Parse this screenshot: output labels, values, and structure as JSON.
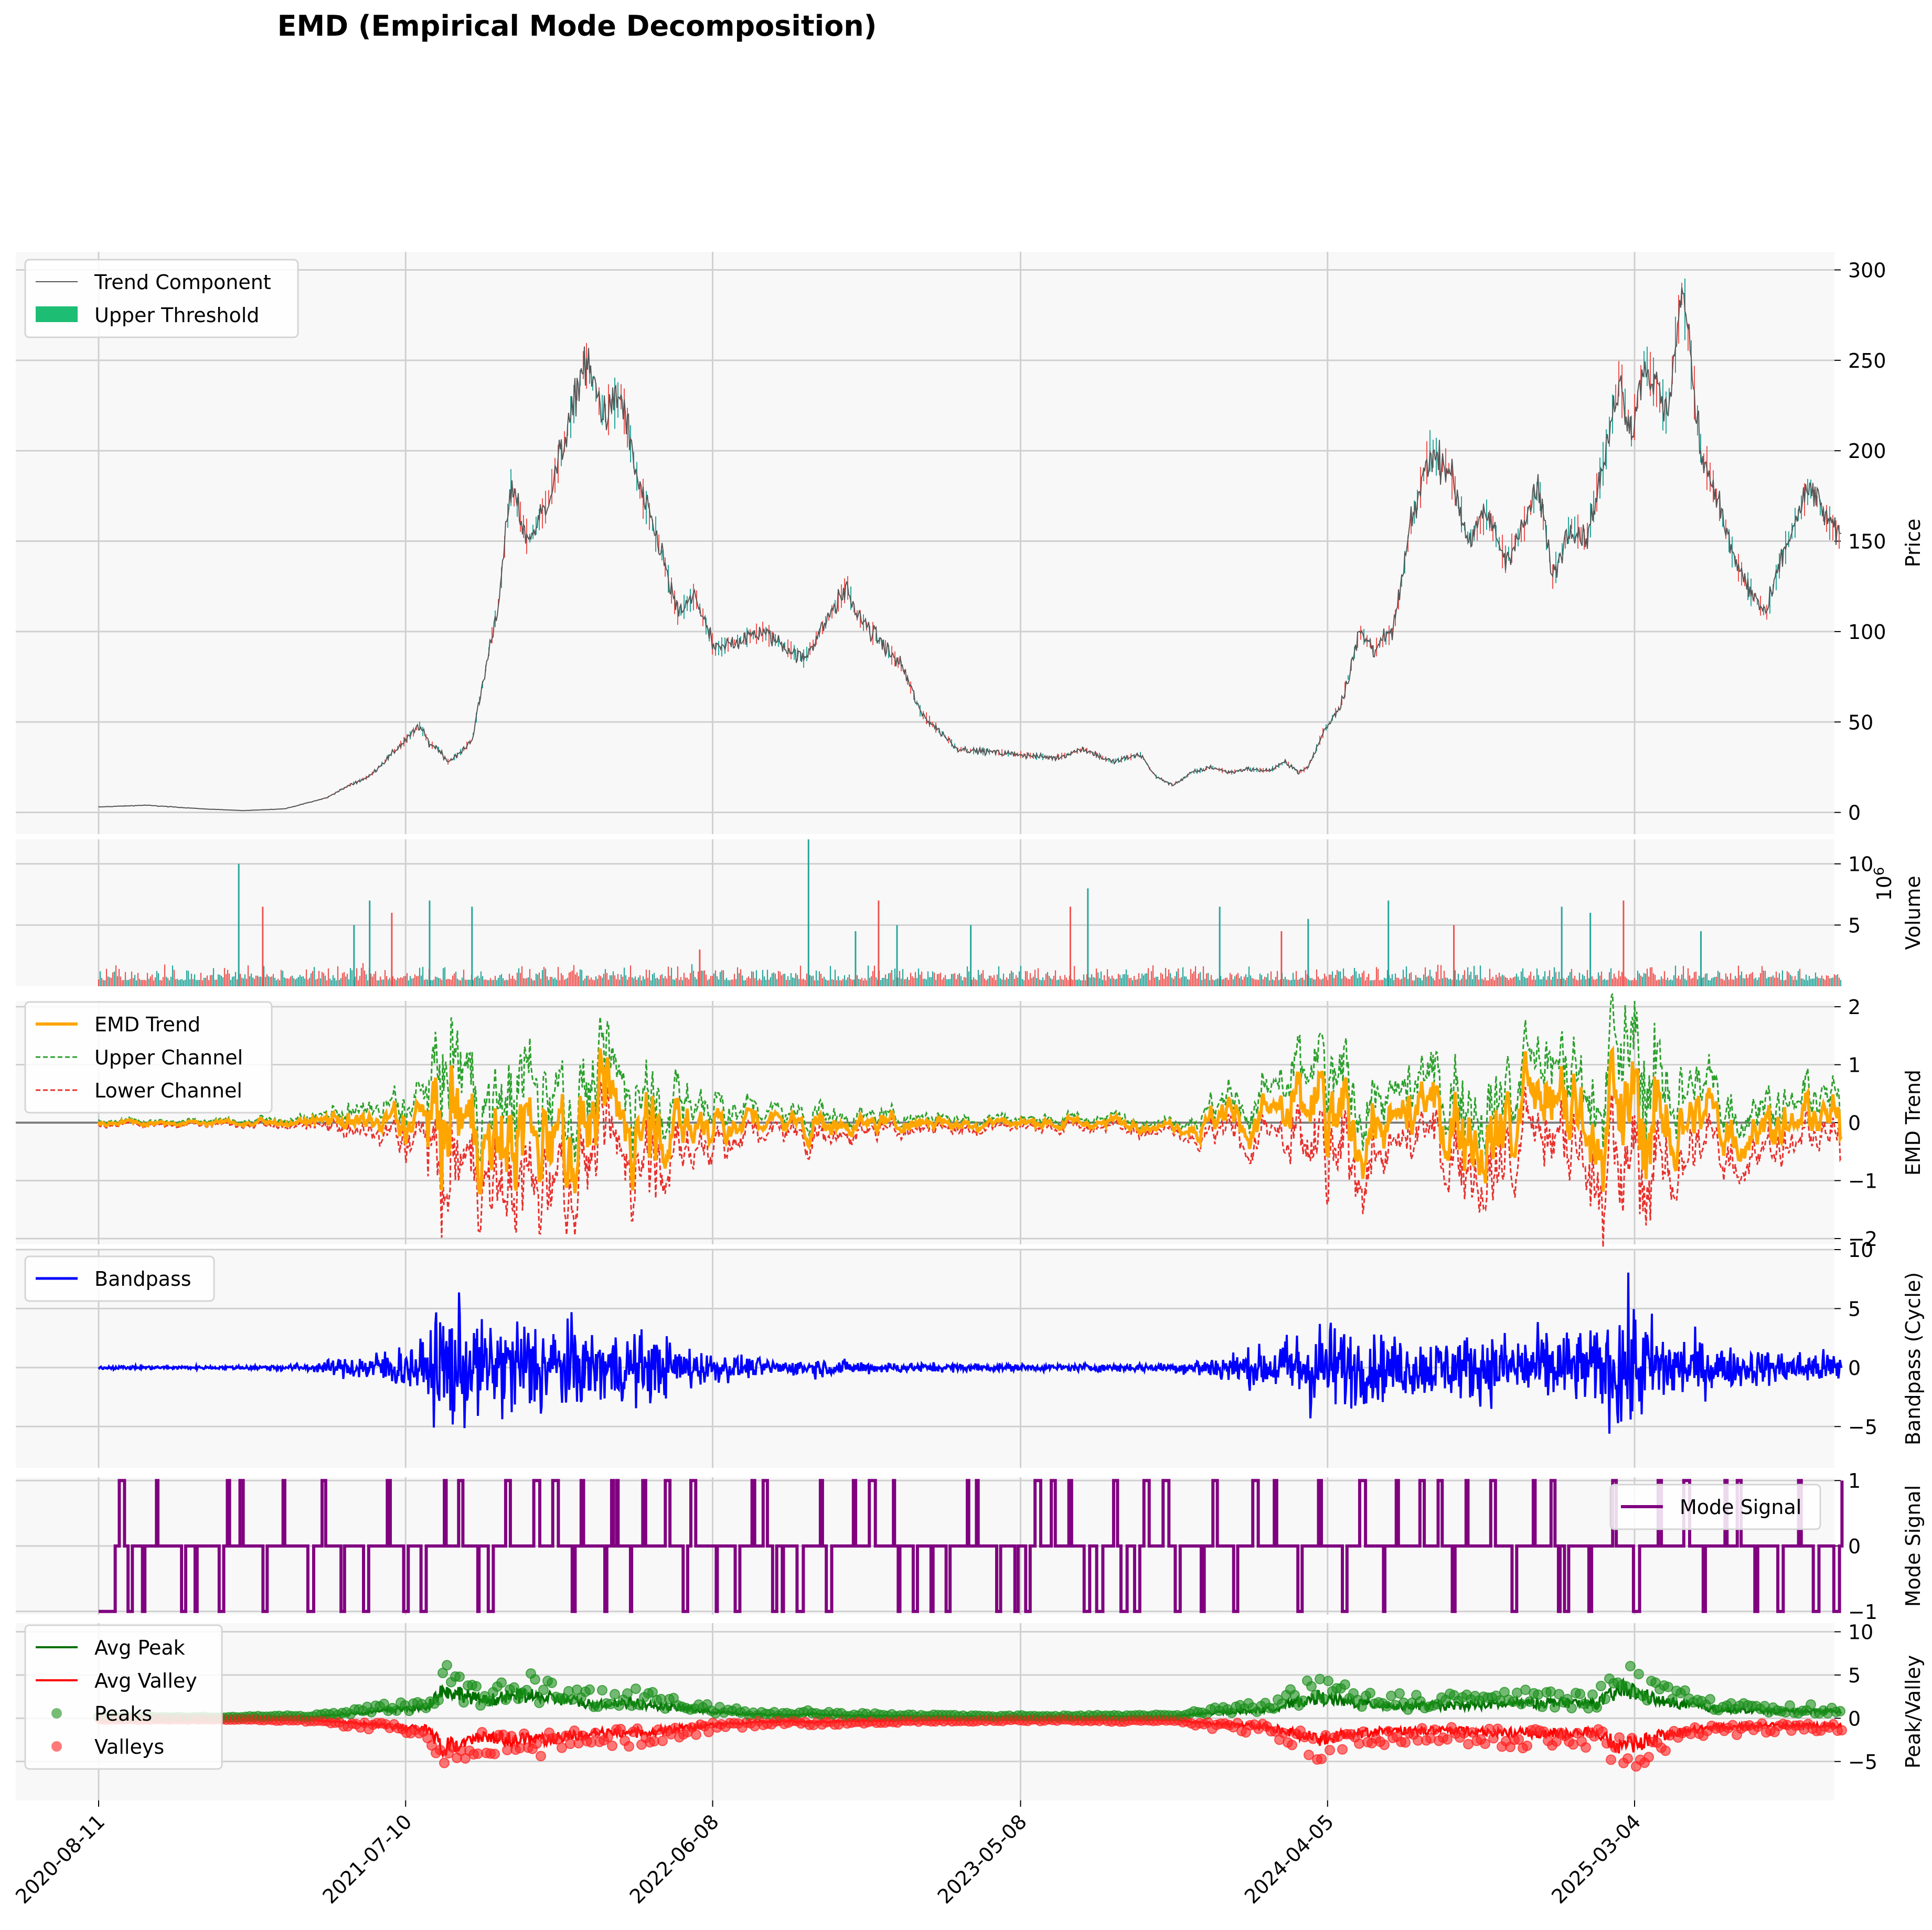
{
  "figure": {
    "title": "EMD (Empirical Mode Decomposition)",
    "x_tick_labels": [
      "2020-08-11",
      "2021-07-10",
      "2022-06-08",
      "2023-05-08",
      "2024-04-05",
      "2025-03-04"
    ],
    "x_tick_dates": [
      "2020-08-11",
      "2021-07-10",
      "2022-06-08",
      "2023-05-08",
      "2024-04-05",
      "2025-03-04"
    ],
    "x_range": [
      "2020-08-11",
      "2025-10-15"
    ]
  },
  "chart_data": [
    {
      "id": "price",
      "type": "line",
      "ylabel": "Price",
      "ylim": [
        -12,
        310
      ],
      "yticks": [
        0,
        50,
        100,
        150,
        200,
        250,
        300
      ],
      "legend": [
        "Trend Component",
        "Upper Threshold"
      ],
      "legend_position": "upper-left",
      "grid": true,
      "colors": {
        "line": "#555555",
        "up": "#26a69a",
        "down": "#ef5350",
        "legend_patch": "#1dbe74"
      },
      "series": [
        {
          "name": "Trend Component",
          "x": [
            "2020-08-11",
            "2020-10-01",
            "2020-12-01",
            "2021-01-15",
            "2021-03-01",
            "2021-04-15",
            "2021-05-10",
            "2021-06-01",
            "2021-07-10",
            "2021-07-25",
            "2021-08-05",
            "2021-08-15",
            "2021-08-25",
            "2021-09-05",
            "2021-09-20",
            "2021-10-05",
            "2021-10-20",
            "2021-11-01",
            "2021-11-20",
            "2021-12-10",
            "2022-01-01",
            "2022-01-20",
            "2022-02-10",
            "2022-03-01",
            "2022-03-20",
            "2022-04-10",
            "2022-05-01",
            "2022-05-20",
            "2022-06-10",
            "2022-08-01",
            "2022-09-15",
            "2022-11-01",
            "2022-11-10",
            "2022-12-31",
            "2023-01-20",
            "2023-03-01",
            "2023-05-08",
            "2023-06-15",
            "2023-07-15",
            "2023-08-15",
            "2023-09-15",
            "2023-10-01",
            "2023-10-20",
            "2023-11-10",
            "2023-12-01",
            "2023-12-20",
            "2024-01-10",
            "2024-02-01",
            "2024-02-20",
            "2024-03-05",
            "2024-03-15",
            "2024-04-01",
            "2024-04-20",
            "2024-05-10",
            "2024-05-25",
            "2024-06-15",
            "2024-07-05",
            "2024-07-25",
            "2024-08-15",
            "2024-09-05",
            "2024-09-25",
            "2024-10-15",
            "2024-11-01",
            "2024-11-20",
            "2024-12-05",
            "2024-12-25",
            "2025-01-10",
            "2025-01-19",
            "2025-02-01",
            "2025-02-15",
            "2025-03-01",
            "2025-03-15",
            "2025-04-08",
            "2025-04-25",
            "2025-05-15",
            "2025-06-01",
            "2025-06-20",
            "2025-07-10",
            "2025-07-25",
            "2025-08-10",
            "2025-08-25",
            "2025-09-10",
            "2025-09-25",
            "2025-10-15"
          ],
          "values": [
            3,
            4,
            2,
            1,
            2,
            8,
            15,
            20,
            40,
            48,
            38,
            35,
            28,
            32,
            40,
            80,
            120,
            180,
            150,
            170,
            210,
            250,
            220,
            230,
            180,
            150,
            110,
            120,
            90,
            100,
            85,
            125,
            110,
            80,
            55,
            35,
            32,
            30,
            35,
            28,
            32,
            20,
            15,
            22,
            25,
            22,
            24,
            23,
            28,
            22,
            25,
            45,
            60,
            100,
            90,
            100,
            160,
            200,
            190,
            150,
            165,
            140,
            155,
            180,
            130,
            160,
            150,
            170,
            200,
            240,
            210,
            250,
            220,
            290,
            200,
            175,
            140,
            120,
            110,
            140,
            160,
            180,
            165,
            150
          ]
        }
      ],
      "note_volume_stand_in": "candles rendered as up/down colored ticks around the trend line"
    },
    {
      "id": "volume",
      "type": "bar",
      "ylabel": "Volume",
      "ylabel_suffix": "1e6",
      "ylim": [
        0,
        12
      ],
      "yticks": [
        5,
        10
      ],
      "grid": true,
      "colors": {
        "up": "#26a69a",
        "down": "#ef5350"
      },
      "spikes": {
        "x": [
          "2021-01-10",
          "2021-02-05",
          "2021-05-15",
          "2021-06-01",
          "2021-06-25",
          "2021-08-05",
          "2021-09-20",
          "2022-05-25",
          "2022-09-20",
          "2022-11-10",
          "2022-12-05",
          "2022-12-25",
          "2023-03-15",
          "2023-07-01",
          "2023-07-20",
          "2023-12-10",
          "2024-02-15",
          "2024-03-15",
          "2024-06-10",
          "2024-08-20",
          "2024-12-15",
          "2025-01-15",
          "2025-02-20",
          "2025-05-15"
        ],
        "values": [
          10,
          6.5,
          5,
          7,
          6,
          7,
          6.5,
          3,
          12,
          4.5,
          7,
          5,
          5,
          6.5,
          8,
          6.5,
          4.5,
          5.5,
          7,
          5,
          6.5,
          6,
          7,
          4.5
        ]
      },
      "baseline_level": 1.2
    },
    {
      "id": "emd_trend",
      "type": "line",
      "ylabel": "EMD Trend",
      "ylim": [
        -2.1,
        2.1
      ],
      "yticks": [
        -2,
        -1,
        0,
        1,
        2
      ],
      "legend": [
        "EMD Trend",
        "Upper Channel",
        "Lower Channel"
      ],
      "legend_position": "upper-left",
      "grid": true,
      "colors": {
        "trend": "#ffa500",
        "upper": "#2ca02c",
        "lower": "#e8302c",
        "zero": "#808080"
      },
      "volatility_envelope": {
        "x": [
          "2020-08-11",
          "2021-01-01",
          "2021-04-01",
          "2021-05-20",
          "2021-07-01",
          "2021-08-01",
          "2021-08-20",
          "2021-10-01",
          "2021-11-15",
          "2021-12-20",
          "2022-02-01",
          "2022-03-10",
          "2022-05-01",
          "2022-06-01",
          "2022-07-15",
          "2022-09-01",
          "2022-09-20",
          "2022-11-01",
          "2023-01-01",
          "2023-05-01",
          "2023-07-01",
          "2023-09-01",
          "2023-10-20",
          "2023-12-01",
          "2024-02-01",
          "2024-03-25",
          "2024-05-01",
          "2024-06-15",
          "2024-08-01",
          "2024-10-01",
          "2024-12-01",
          "2025-01-20",
          "2025-02-20",
          "2025-04-01",
          "2025-06-01",
          "2025-08-01",
          "2025-10-15"
        ],
        "values": [
          0.05,
          0.05,
          0.1,
          0.25,
          0.35,
          0.5,
          1.4,
          0.8,
          1.2,
          1.0,
          0.8,
          0.9,
          0.6,
          0.5,
          0.3,
          0.2,
          0.3,
          0.2,
          0.15,
          0.1,
          0.1,
          0.12,
          0.1,
          0.3,
          0.5,
          1.0,
          0.8,
          0.6,
          0.7,
          0.8,
          0.9,
          0.9,
          1.5,
          1.0,
          0.6,
          0.5,
          0.45
        ]
      }
    },
    {
      "id": "bandpass",
      "type": "line",
      "ylabel": "Bandpass (Cycle)",
      "ylim": [
        -8.5,
        10
      ],
      "yticks": [
        -5,
        0,
        5,
        10
      ],
      "legend": [
        "Bandpass"
      ],
      "legend_position": "upper-left",
      "grid": true,
      "colors": {
        "line": "#0000ff"
      },
      "amplitude_envelope": {
        "x": [
          "2020-08-11",
          "2021-01-01",
          "2021-04-01",
          "2021-05-20",
          "2021-07-01",
          "2021-08-01",
          "2021-08-20",
          "2021-10-01",
          "2021-11-15",
          "2021-12-20",
          "2022-02-01",
          "2022-03-10",
          "2022-05-01",
          "2022-06-01",
          "2022-07-15",
          "2022-09-01",
          "2022-09-20",
          "2022-11-01",
          "2023-01-01",
          "2023-05-01",
          "2023-07-01",
          "2023-09-01",
          "2023-10-20",
          "2023-12-01",
          "2024-02-01",
          "2024-03-25",
          "2024-05-01",
          "2024-06-15",
          "2024-08-01",
          "2024-10-01",
          "2024-12-01",
          "2025-01-20",
          "2025-02-20",
          "2025-04-01",
          "2025-06-01",
          "2025-08-01",
          "2025-10-15"
        ],
        "values": [
          0.2,
          0.2,
          0.5,
          1.5,
          2.5,
          3.0,
          8.5,
          5.0,
          6.5,
          5.5,
          4.0,
          4.5,
          3.0,
          2.0,
          1.2,
          0.8,
          1.2,
          0.8,
          0.6,
          0.4,
          0.4,
          0.5,
          0.5,
          1.5,
          2.5,
          6.0,
          4.5,
          3.5,
          3.5,
          4.0,
          4.5,
          4.0,
          8.5,
          5.0,
          2.5,
          2.0,
          2.0
        ]
      }
    },
    {
      "id": "mode_signal",
      "type": "line",
      "ylabel": "Mode Signal",
      "ylim": [
        -1.05,
        1.05
      ],
      "yticks": [
        -1,
        0,
        1
      ],
      "legend": [
        "Mode Signal"
      ],
      "legend_position": "upper-right",
      "grid": true,
      "colors": {
        "line": "#800080"
      }
    },
    {
      "id": "peak_valley",
      "type": "scatter",
      "ylabel": "Peak/Valley",
      "ylim": [
        -9.5,
        11
      ],
      "yticks": [
        -5,
        0,
        5,
        10
      ],
      "legend": [
        "Avg Peak",
        "Avg Valley",
        "Peaks",
        "Valleys"
      ],
      "legend_position": "upper-left",
      "grid": true,
      "colors": {
        "avg_peak": "#007000",
        "avg_valley": "#ff0000",
        "peaks": "#1a8f1a",
        "valleys": "#ff2020"
      }
    }
  ]
}
